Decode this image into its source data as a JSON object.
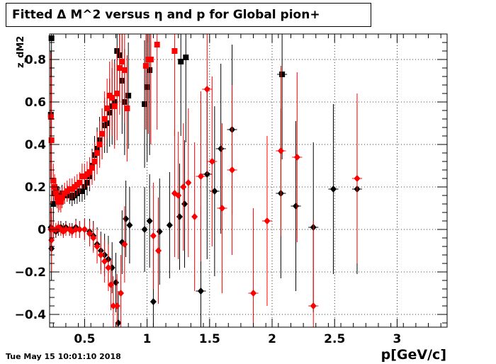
{
  "title": "Fitted Δ M^2 versus η and p for Global pion+",
  "footer_date": "Tue May 15 10:01:10 2018",
  "chart_data": {
    "type": "scatter",
    "title": "Fitted Δ M^2 versus η and p for Global pion+",
    "xlabel": "p[GeV/c]",
    "ylabel": "z_dM2",
    "xlim": [
      0.22,
      3.4
    ],
    "ylim": [
      -0.46,
      0.92
    ],
    "xticks": [
      0.5,
      1,
      1.5,
      2,
      2.5,
      3
    ],
    "xtick_labels": [
      "0.5",
      "1",
      "1.5",
      "2",
      "2.5",
      "3"
    ],
    "yticks": [
      -0.4,
      -0.2,
      0,
      0.2,
      0.4,
      0.6,
      0.8
    ],
    "ytick_labels": [
      "−0.4",
      "−0.2",
      "0",
      "0.2",
      "0.4",
      "0.6",
      "0.8"
    ],
    "grid": true,
    "series": [
      {
        "color": "#000000",
        "marker": "square",
        "points": [
          [
            0.23,
            0.54,
            0.3
          ],
          [
            0.235,
            0.9,
            0.3
          ],
          [
            0.25,
            0.12,
            0.08
          ],
          [
            0.26,
            0.17,
            0.05
          ],
          [
            0.27,
            0.19,
            0.05
          ],
          [
            0.28,
            0.16,
            0.04
          ],
          [
            0.29,
            0.15,
            0.04
          ],
          [
            0.3,
            0.16,
            0.04
          ],
          [
            0.31,
            0.14,
            0.04
          ],
          [
            0.32,
            0.17,
            0.04
          ],
          [
            0.34,
            0.16,
            0.04
          ],
          [
            0.36,
            0.17,
            0.04
          ],
          [
            0.38,
            0.16,
            0.04
          ],
          [
            0.4,
            0.15,
            0.04
          ],
          [
            0.42,
            0.16,
            0.04
          ],
          [
            0.44,
            0.17,
            0.05
          ],
          [
            0.46,
            0.18,
            0.05
          ],
          [
            0.48,
            0.18,
            0.05
          ],
          [
            0.5,
            0.2,
            0.06
          ],
          [
            0.52,
            0.22,
            0.06
          ],
          [
            0.54,
            0.25,
            0.07
          ],
          [
            0.56,
            0.3,
            0.08
          ],
          [
            0.58,
            0.35,
            0.09
          ],
          [
            0.6,
            0.38,
            0.1
          ],
          [
            0.62,
            0.42,
            0.11
          ],
          [
            0.64,
            0.45,
            0.12
          ],
          [
            0.66,
            0.49,
            0.13
          ],
          [
            0.68,
            0.5,
            0.14
          ],
          [
            0.7,
            0.55,
            0.16
          ],
          [
            0.72,
            0.58,
            0.18
          ],
          [
            0.74,
            0.6,
            0.2
          ],
          [
            0.76,
            0.84,
            0.22
          ],
          [
            0.78,
            0.82,
            0.22
          ],
          [
            0.8,
            0.7,
            0.25
          ],
          [
            0.82,
            0.6,
            0.25
          ],
          [
            0.85,
            0.63,
            0.25
          ],
          [
            0.98,
            0.59,
            0.3
          ],
          [
            1.0,
            0.67,
            0.35
          ],
          [
            1.02,
            0.75,
            0.4
          ],
          [
            1.27,
            0.79,
            0.35
          ],
          [
            1.31,
            0.81,
            0.4
          ],
          [
            2.08,
            0.73,
            0.4
          ]
        ]
      },
      {
        "color": "#000000",
        "marker": "diamond",
        "points": [
          [
            0.23,
            0.01,
            0.1
          ],
          [
            0.235,
            -0.09,
            0.15
          ],
          [
            0.25,
            0.0,
            0.04
          ],
          [
            0.27,
            -0.01,
            0.03
          ],
          [
            0.29,
            0.0,
            0.03
          ],
          [
            0.31,
            0.01,
            0.03
          ],
          [
            0.33,
            0.0,
            0.03
          ],
          [
            0.35,
            0.01,
            0.03
          ],
          [
            0.38,
            0.0,
            0.03
          ],
          [
            0.4,
            0.0,
            0.03
          ],
          [
            0.43,
            0.01,
            0.04
          ],
          [
            0.46,
            0.0,
            0.04
          ],
          [
            0.5,
            0.0,
            0.05
          ],
          [
            0.54,
            -0.01,
            0.06
          ],
          [
            0.57,
            -0.03,
            0.07
          ],
          [
            0.6,
            -0.07,
            0.08
          ],
          [
            0.63,
            -0.1,
            0.09
          ],
          [
            0.66,
            -0.12,
            0.1
          ],
          [
            0.69,
            -0.14,
            0.11
          ],
          [
            0.72,
            -0.18,
            0.12
          ],
          [
            0.75,
            -0.25,
            0.14
          ],
          [
            0.77,
            -0.44,
            0.15
          ],
          [
            0.8,
            -0.06,
            0.15
          ],
          [
            0.83,
            0.05,
            0.18
          ],
          [
            0.86,
            0.02,
            0.18
          ],
          [
            0.98,
            0.0,
            0.2
          ],
          [
            1.02,
            0.04,
            0.22
          ],
          [
            1.05,
            -0.34,
            0.25
          ],
          [
            1.1,
            -0.01,
            0.25
          ],
          [
            1.18,
            0.02,
            0.25
          ],
          [
            1.26,
            0.06,
            0.25
          ],
          [
            1.3,
            0.12,
            0.3
          ],
          [
            1.43,
            -0.29,
            0.4
          ],
          [
            1.48,
            0.26,
            0.4
          ],
          [
            1.54,
            0.18,
            0.4
          ],
          [
            1.59,
            0.38,
            0.4
          ],
          [
            1.68,
            0.47,
            0.4
          ],
          [
            2.07,
            0.17,
            0.4
          ],
          [
            2.19,
            0.11,
            0.4
          ],
          [
            2.33,
            0.01,
            0.4
          ],
          [
            2.49,
            0.19,
            0.4
          ],
          [
            2.68,
            0.19,
            0.4
          ]
        ]
      },
      {
        "color": "#ff0000",
        "marker": "square",
        "points": [
          [
            0.23,
            0.53,
            0.3
          ],
          [
            0.235,
            0.42,
            0.3
          ],
          [
            0.25,
            0.23,
            0.08
          ],
          [
            0.26,
            0.2,
            0.06
          ],
          [
            0.27,
            0.17,
            0.05
          ],
          [
            0.28,
            0.15,
            0.05
          ],
          [
            0.29,
            0.13,
            0.05
          ],
          [
            0.3,
            0.14,
            0.05
          ],
          [
            0.31,
            0.13,
            0.05
          ],
          [
            0.32,
            0.15,
            0.05
          ],
          [
            0.34,
            0.17,
            0.05
          ],
          [
            0.36,
            0.18,
            0.05
          ],
          [
            0.38,
            0.19,
            0.05
          ],
          [
            0.4,
            0.19,
            0.05
          ],
          [
            0.42,
            0.2,
            0.05
          ],
          [
            0.44,
            0.21,
            0.05
          ],
          [
            0.46,
            0.22,
            0.05
          ],
          [
            0.48,
            0.25,
            0.06
          ],
          [
            0.5,
            0.25,
            0.06
          ],
          [
            0.52,
            0.26,
            0.06
          ],
          [
            0.54,
            0.27,
            0.07
          ],
          [
            0.56,
            0.29,
            0.08
          ],
          [
            0.58,
            0.32,
            0.09
          ],
          [
            0.6,
            0.36,
            0.1
          ],
          [
            0.62,
            0.4,
            0.11
          ],
          [
            0.64,
            0.45,
            0.12
          ],
          [
            0.66,
            0.52,
            0.13
          ],
          [
            0.68,
            0.57,
            0.14
          ],
          [
            0.7,
            0.63,
            0.16
          ],
          [
            0.72,
            0.62,
            0.18
          ],
          [
            0.74,
            0.58,
            0.2
          ],
          [
            0.76,
            0.64,
            0.22
          ],
          [
            0.78,
            0.76,
            0.22
          ],
          [
            0.8,
            0.79,
            0.22
          ],
          [
            0.82,
            0.75,
            0.25
          ],
          [
            0.84,
            0.57,
            0.25
          ],
          [
            0.99,
            0.77,
            0.3
          ],
          [
            1.01,
            0.8,
            0.35
          ],
          [
            1.03,
            0.8,
            0.4
          ],
          [
            1.08,
            0.87,
            0.4
          ],
          [
            1.22,
            0.84,
            0.4
          ]
        ]
      },
      {
        "color": "#ff0000",
        "marker": "diamond",
        "points": [
          [
            0.23,
            0.0,
            0.1
          ],
          [
            0.235,
            -0.05,
            0.15
          ],
          [
            0.25,
            0.0,
            0.04
          ],
          [
            0.27,
            0.0,
            0.03
          ],
          [
            0.29,
            0.01,
            0.03
          ],
          [
            0.31,
            0.0,
            0.03
          ],
          [
            0.33,
            -0.01,
            0.03
          ],
          [
            0.35,
            0.0,
            0.03
          ],
          [
            0.38,
            0.0,
            0.03
          ],
          [
            0.4,
            -0.01,
            0.03
          ],
          [
            0.43,
            0.0,
            0.04
          ],
          [
            0.46,
            0.0,
            0.04
          ],
          [
            0.5,
            0.0,
            0.05
          ],
          [
            0.54,
            -0.02,
            0.06
          ],
          [
            0.57,
            -0.04,
            0.07
          ],
          [
            0.6,
            -0.08,
            0.08
          ],
          [
            0.63,
            -0.12,
            0.09
          ],
          [
            0.66,
            -0.15,
            0.1
          ],
          [
            0.69,
            -0.18,
            0.11
          ],
          [
            0.71,
            -0.26,
            0.12
          ],
          [
            0.73,
            -0.36,
            0.14
          ],
          [
            0.76,
            -0.36,
            0.15
          ],
          [
            0.79,
            -0.3,
            0.18
          ],
          [
            0.82,
            -0.07,
            0.18
          ],
          [
            1.05,
            -0.03,
            0.25
          ],
          [
            1.09,
            -0.1,
            0.25
          ],
          [
            1.22,
            0.17,
            0.3
          ],
          [
            1.25,
            0.16,
            0.3
          ],
          [
            1.29,
            0.2,
            0.3
          ],
          [
            1.33,
            0.22,
            0.35
          ],
          [
            1.38,
            0.06,
            0.35
          ],
          [
            1.43,
            0.25,
            0.4
          ],
          [
            1.48,
            0.66,
            0.4
          ],
          [
            1.52,
            0.32,
            0.4
          ],
          [
            1.6,
            0.1,
            0.4
          ],
          [
            1.68,
            0.28,
            0.4
          ],
          [
            1.85,
            -0.3,
            0.4
          ],
          [
            1.96,
            0.04,
            0.4
          ],
          [
            2.07,
            0.37,
            0.4
          ],
          [
            2.2,
            0.34,
            0.4
          ],
          [
            2.33,
            -0.36,
            0.4
          ],
          [
            2.68,
            0.24,
            0.4
          ]
        ]
      }
    ]
  }
}
